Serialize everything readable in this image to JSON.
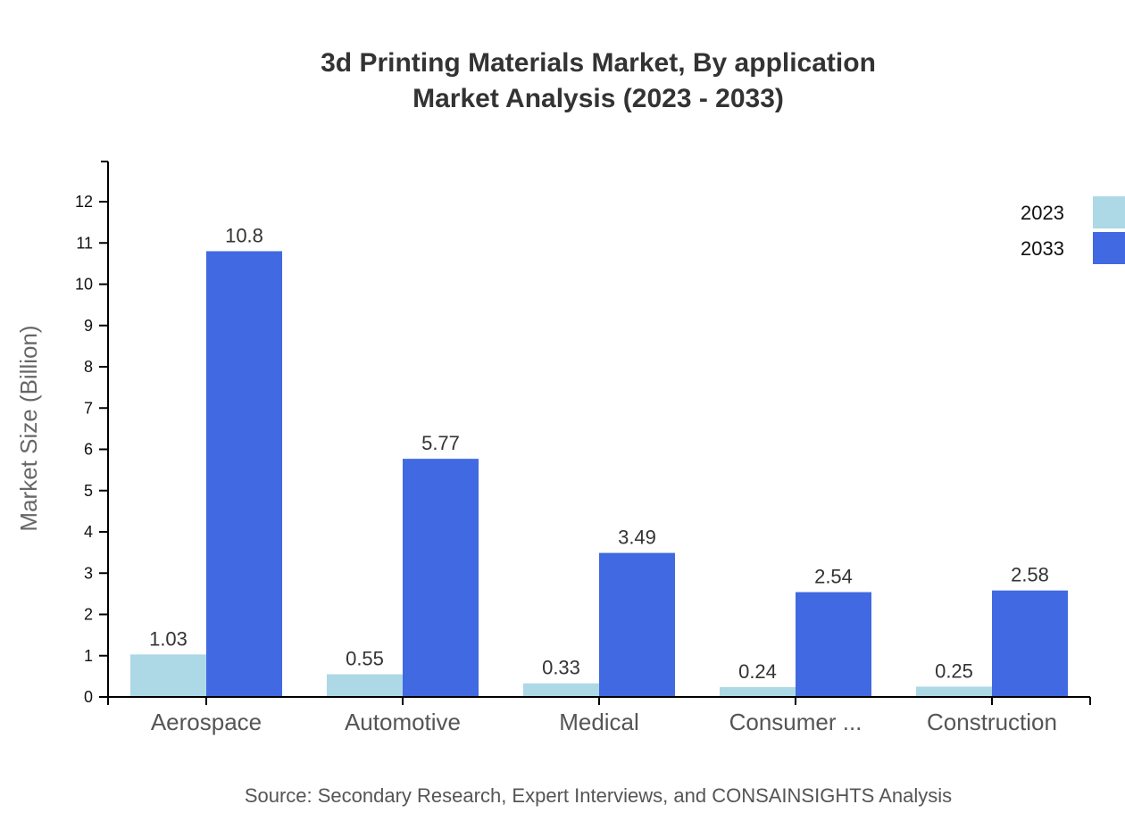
{
  "title": {
    "line1": "3d Printing Materials Market, By application",
    "line2": "Market Analysis (2023 - 2033)"
  },
  "y_axis": {
    "label": "Market Size (Billion)",
    "ticks": [
      "0",
      "1",
      "2",
      "3",
      "4",
      "5",
      "6",
      "7",
      "8",
      "9",
      "10",
      "11",
      "12"
    ]
  },
  "legend": [
    {
      "label": "2023",
      "color": "#add8e6"
    },
    {
      "label": "2033",
      "color": "#4169e1"
    }
  ],
  "source": "Source: Secondary Research, Expert Interviews, and CONSAINSIGHTS Analysis",
  "chart_data": {
    "type": "bar",
    "title": "3d Printing Materials Market, By application Market Analysis (2023 - 2033)",
    "xlabel": "",
    "ylabel": "Market Size (Billion)",
    "ylim": [
      0,
      13
    ],
    "grid": false,
    "legend_position": "top-right",
    "categories": [
      "Aerospace",
      "Automotive",
      "Medical",
      "Consumer ...",
      "Construction"
    ],
    "series": [
      {
        "name": "2023",
        "color": "#add8e6",
        "values": [
          1.03,
          0.55,
          0.33,
          0.24,
          0.25
        ],
        "labels": [
          "1.03",
          "0.55",
          "0.33",
          "0.24",
          "0.25"
        ]
      },
      {
        "name": "2033",
        "color": "#4169e1",
        "values": [
          10.8,
          5.77,
          3.49,
          2.54,
          2.58
        ],
        "labels": [
          "10.8",
          "5.77",
          "3.49",
          "2.54",
          "2.58"
        ]
      }
    ]
  }
}
